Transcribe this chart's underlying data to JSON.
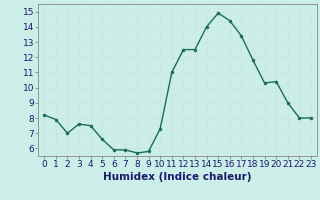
{
  "x": [
    0,
    1,
    2,
    3,
    4,
    5,
    6,
    7,
    8,
    9,
    10,
    11,
    12,
    13,
    14,
    15,
    16,
    17,
    18,
    19,
    20,
    21,
    22,
    23
  ],
  "y": [
    8.2,
    7.9,
    7.0,
    7.6,
    7.5,
    6.6,
    5.9,
    5.9,
    5.7,
    5.8,
    7.3,
    11.0,
    12.5,
    12.5,
    14.0,
    14.9,
    14.4,
    13.4,
    11.8,
    10.3,
    10.4,
    9.0,
    8.0,
    8.0
  ],
  "line_color": "#1a6b5a",
  "marker_color": "#1a6b5a",
  "bg_color": "#cceee8",
  "grid_color": "#c8e8e0",
  "xlabel": "Humidex (Indice chaleur)",
  "xlabel_fontsize": 7.5,
  "xtick_labels": [
    "0",
    "1",
    "2",
    "3",
    "4",
    "5",
    "6",
    "7",
    "8",
    "9",
    "10",
    "11",
    "12",
    "13",
    "14",
    "15",
    "16",
    "17",
    "18",
    "19",
    "20",
    "21",
    "22",
    "23"
  ],
  "ylim": [
    5.5,
    15.5
  ],
  "yticks": [
    6,
    7,
    8,
    9,
    10,
    11,
    12,
    13,
    14,
    15
  ],
  "xlim": [
    -0.5,
    23.5
  ],
  "tick_fontsize": 6.5
}
